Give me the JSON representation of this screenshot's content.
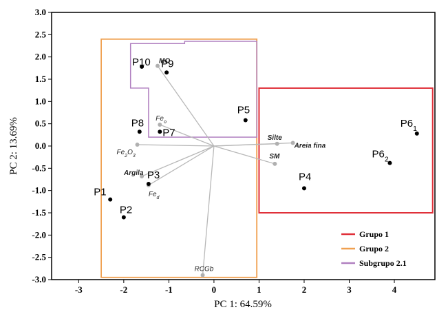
{
  "chart_data": {
    "type": "scatter",
    "title": "",
    "xlabel": "PC 1: 64.59%",
    "ylabel": "PC 2: 13.69%",
    "xlim": [
      -3.6,
      4.9
    ],
    "ylim": [
      -3.0,
      3.0
    ],
    "x_ticks": [
      -3,
      -2,
      -1,
      0,
      1,
      2,
      3,
      4
    ],
    "y_ticks": [
      3.0,
      2.5,
      2.0,
      1.5,
      1.0,
      0.5,
      0.0,
      -0.5,
      -1.0,
      -1.5,
      -2.0,
      -2.5,
      -3.0
    ],
    "x_tick_labels": [
      "-3",
      "-2",
      "-1",
      "0",
      "1",
      "2",
      "3",
      "4"
    ],
    "y_tick_labels": [
      "3.0",
      "2.5",
      "2.0",
      "1.5",
      "1.0",
      "0.5",
      "0.0",
      "-0.5",
      "-1.0",
      "-1.5",
      "-2.0",
      "-2.5",
      "-3.0"
    ],
    "grid": false,
    "points": [
      {
        "label": "P1",
        "x": -2.3,
        "y": -1.2
      },
      {
        "label": "P2",
        "x": -2.0,
        "y": -1.6
      },
      {
        "label": "P3",
        "x": -1.45,
        "y": -0.85
      },
      {
        "label": "P4",
        "x": 2.0,
        "y": -0.95
      },
      {
        "label": "P5",
        "x": 0.7,
        "y": 0.58
      },
      {
        "label": "P6",
        "sub": "1",
        "x": 4.5,
        "y": 0.28
      },
      {
        "label": "P6",
        "sub": "2",
        "x": 3.9,
        "y": -0.38
      },
      {
        "label": "P7",
        "x": -1.2,
        "y": 0.32
      },
      {
        "label": "P8",
        "x": -1.65,
        "y": 0.32
      },
      {
        "label": "P9",
        "x": -1.05,
        "y": 1.65
      },
      {
        "label": "P10",
        "x": -1.6,
        "y": 1.78
      }
    ],
    "loadings": [
      {
        "name": "MO",
        "x": -1.25,
        "y": 1.8,
        "italic": true,
        "bold": true
      },
      {
        "name": "Fe",
        "sub": "o",
        "x": -1.2,
        "y": 0.48,
        "italic": true
      },
      {
        "name": "Fe",
        "sub": "2",
        "suffix": "O",
        "sub2": "3",
        "x": -1.7,
        "y": 0.03,
        "italic": true
      },
      {
        "name": "Argila",
        "x": -1.6,
        "y": -0.68,
        "italic": true,
        "bold": true
      },
      {
        "name": "Fe",
        "sub": "d",
        "x": -1.45,
        "y": -0.88,
        "italic": true
      },
      {
        "name": "Silte",
        "x": 1.4,
        "y": 0.05,
        "italic": true,
        "bold": true
      },
      {
        "name": "Areia fina",
        "x": 1.75,
        "y": 0.07,
        "italic": true,
        "bold": true
      },
      {
        "name": "SM",
        "x": 1.35,
        "y": -0.4,
        "italic": true,
        "bold": true
      },
      {
        "name": "RCGb",
        "x": -0.25,
        "y": -2.9,
        "italic": true
      }
    ],
    "groups": [
      {
        "name": "Grupo 1",
        "color": "#e0303a",
        "x": [
          1.0,
          4.85
        ],
        "y": [
          -1.5,
          1.3
        ]
      },
      {
        "name": "Grupo 2",
        "color": "#f0a050",
        "x": [
          -2.5,
          0.95
        ],
        "y": [
          -2.95,
          2.4
        ]
      },
      {
        "name": "Subgrupo 2.1",
        "color": "#b080c0",
        "polygon": [
          [
            -1.85,
            2.3
          ],
          [
            -0.65,
            2.3
          ],
          [
            -0.65,
            2.35
          ],
          [
            0.95,
            2.35
          ],
          [
            0.95,
            0.2
          ],
          [
            -1.45,
            0.2
          ],
          [
            -1.45,
            1.3
          ],
          [
            -1.85,
            1.3
          ]
        ]
      }
    ],
    "legend": {
      "position": "bottom-right",
      "items": [
        "Grupo 1",
        "Grupo 2",
        "Subgrupo 2.1"
      ]
    }
  }
}
